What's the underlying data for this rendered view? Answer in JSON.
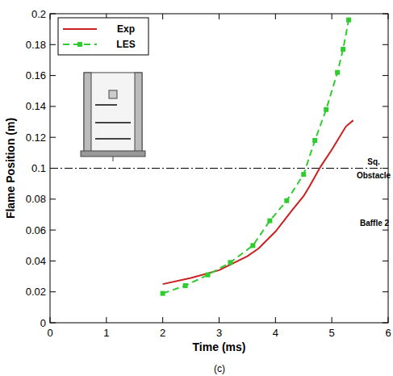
{
  "chart_data": {
    "type": "line",
    "x_label": "Time (ms)",
    "y_label": "Flame Position (m)",
    "xlim": [
      0,
      6
    ],
    "xticks": [
      0,
      1,
      2,
      3,
      4,
      5,
      6
    ],
    "ylim": [
      0,
      0.2
    ],
    "yticks": [
      0,
      0.02,
      0.04,
      0.06,
      0.08,
      0.1,
      0.12,
      0.14,
      0.16,
      0.18,
      0.2
    ],
    "grid": false,
    "legend": "upper left",
    "series": [
      {
        "name": "Exp",
        "color": "#cc1f1f",
        "line_style": "solid",
        "marker": "none",
        "x": [
          2.0,
          2.5,
          3.0,
          3.5,
          3.7,
          4.0,
          4.3,
          4.5,
          4.6,
          4.8,
          5.0,
          5.25,
          5.38
        ],
        "values": [
          0.025,
          0.029,
          0.034,
          0.043,
          0.048,
          0.059,
          0.073,
          0.082,
          0.088,
          0.101,
          0.112,
          0.127,
          0.131
        ]
      },
      {
        "name": "LES",
        "color": "#2ecc2e",
        "line_style": "dashed",
        "marker": "square",
        "x": [
          2.0,
          2.4,
          2.8,
          3.2,
          3.6,
          3.9,
          4.2,
          4.5,
          4.7,
          4.9,
          5.1,
          5.2,
          5.3
        ],
        "values": [
          0.019,
          0.024,
          0.031,
          0.039,
          0.05,
          0.066,
          0.079,
          0.096,
          0.118,
          0.138,
          0.162,
          0.177,
          0.196
        ]
      }
    ],
    "annotations": [
      {
        "text": "Sq. Obstacle",
        "y": 0.1,
        "line_style": "dashdot"
      },
      {
        "text": "Baffle 2"
      },
      {
        "text": "(c)"
      }
    ]
  }
}
